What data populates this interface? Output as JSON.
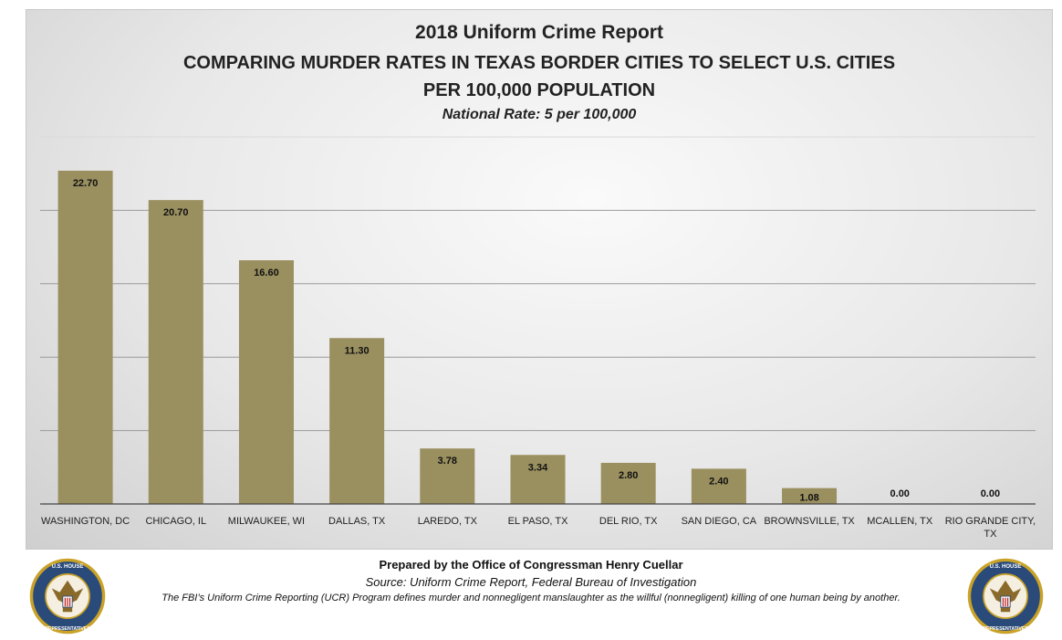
{
  "chart_data": {
    "type": "bar",
    "title": "2018 Uniform Crime Report",
    "subtitle": "COMPARING MURDER RATES IN TEXAS BORDER CITIES TO SELECT U.S. CITIES PER 100,000 POPULATION",
    "annotation": "National Rate: 5 per 100,000",
    "categories": [
      "WASHINGTON, DC",
      "CHICAGO, IL",
      "MILWAUKEE, WI",
      "DALLAS, TX",
      "LAREDO, TX",
      "EL PASO, TX",
      "DEL RIO, TX",
      "SAN DIEGO, CA",
      "BROWNSVILLE, TX",
      "MCALLEN, TX",
      "RIO GRANDE CITY, TX"
    ],
    "values": [
      22.7,
      20.7,
      16.6,
      11.3,
      3.78,
      3.34,
      2.8,
      2.4,
      1.08,
      0.0,
      0.0
    ],
    "data_labels": [
      "22.70",
      "20.70",
      "16.60",
      "11.30",
      "3.78",
      "3.34",
      "2.80",
      "2.40",
      "1.08",
      "0.00",
      "0.00"
    ],
    "xlabel": "",
    "ylabel": "",
    "ylim": [
      0,
      25
    ],
    "y_gridlines": [
      5,
      10,
      15,
      20,
      25
    ],
    "y_tick_labels_shown": false,
    "grid": true,
    "legend": false,
    "bar_color": "#9a8f5f"
  },
  "footer": {
    "prepared": "Prepared by the Office of Congressman Henry Cuellar",
    "source": "Source: Uniform Crime Report, Federal Bureau of Investigation",
    "definition": "The FBI’s Uniform Crime Reporting (UCR) Program defines murder and nonnegligent manslaughter as the willful (nonnegligent) killing of one human being by another.",
    "seal_text": "U.S. HOUSE OF REPRESENTATIVES"
  },
  "colors": {
    "bar": "#9a8f5f",
    "seal_outer": "#2a4a7a",
    "seal_gold": "#c9a227"
  }
}
